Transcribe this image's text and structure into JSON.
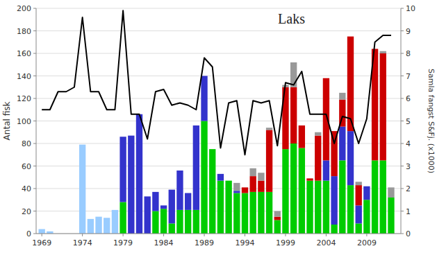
{
  "chart_data": {
    "type": "bar",
    "stacked": true,
    "grid": true,
    "title": "Laks",
    "ylabel": "Antal fisk",
    "y2label": "Samla fangst S&Fj. (x1000)",
    "x": [
      1969,
      1970,
      1971,
      1972,
      1973,
      1974,
      1975,
      1976,
      1977,
      1978,
      1979,
      1980,
      1981,
      1982,
      1983,
      1984,
      1985,
      1986,
      1987,
      1988,
      1989,
      1990,
      1991,
      1992,
      1993,
      1994,
      1995,
      1996,
      1997,
      1998,
      1999,
      2000,
      2001,
      2002,
      2003,
      2004,
      2005,
      2006,
      2007,
      2008,
      2009,
      2010,
      2011,
      2012
    ],
    "xlim": [
      1968.3,
      2013.2
    ],
    "xticks": [
      1969,
      1974,
      1979,
      1984,
      1989,
      1994,
      1999,
      2004,
      2009
    ],
    "ylim": [
      0,
      200
    ],
    "yticks": [
      0,
      20,
      40,
      60,
      80,
      100,
      120,
      140,
      160,
      180,
      200
    ],
    "y2lim": [
      0,
      10
    ],
    "y2ticks": [
      0,
      1,
      2,
      3,
      4,
      5,
      6,
      7,
      8,
      9,
      10
    ],
    "series": [
      {
        "color": "#99CCFF",
        "values": [
          4,
          2,
          0,
          0,
          0,
          79,
          13,
          15,
          14,
          21,
          0,
          0,
          0,
          0,
          0,
          0,
          0,
          0,
          0,
          0,
          0,
          0,
          0,
          0,
          0,
          0,
          0,
          0,
          0,
          0,
          0,
          0,
          0,
          0,
          0,
          0,
          0,
          0,
          0,
          0,
          0,
          0,
          0,
          0
        ]
      },
      {
        "color": "#00CC00",
        "values": [
          0,
          0,
          0,
          0,
          0,
          0,
          0,
          0,
          0,
          0,
          28,
          0,
          0,
          0,
          20,
          22,
          9,
          21,
          21,
          21,
          100,
          75,
          47,
          47,
          36,
          36,
          37,
          37,
          37,
          12,
          75,
          80,
          76,
          47,
          47,
          47,
          8,
          65,
          43,
          9,
          30,
          65,
          65,
          32
        ]
      },
      {
        "color": "#3333CC",
        "values": [
          0,
          0,
          0,
          0,
          0,
          0,
          0,
          0,
          0,
          0,
          58,
          87,
          106,
          33,
          17,
          3,
          30,
          35,
          15,
          75,
          40,
          0,
          6,
          0,
          2,
          0,
          0,
          0,
          0,
          0,
          0,
          0,
          0,
          0,
          0,
          18,
          43,
          30,
          48,
          16,
          12,
          0,
          0,
          0
        ]
      },
      {
        "color": "#CC0000",
        "values": [
          0,
          0,
          0,
          0,
          0,
          0,
          0,
          0,
          0,
          0,
          0,
          0,
          0,
          0,
          0,
          0,
          0,
          0,
          0,
          0,
          0,
          0,
          0,
          0,
          0,
          5,
          14,
          10,
          55,
          3,
          55,
          50,
          20,
          2,
          40,
          73,
          40,
          24,
          84,
          18,
          0,
          99,
          95,
          0
        ]
      },
      {
        "color": "#999999",
        "values": [
          0,
          0,
          0,
          0,
          0,
          0,
          0,
          0,
          0,
          0,
          0,
          0,
          0,
          0,
          0,
          0,
          0,
          0,
          0,
          0,
          0,
          0,
          0,
          0,
          7,
          0,
          7,
          7,
          2,
          5,
          2,
          22,
          0,
          0,
          3,
          0,
          0,
          6,
          0,
          3,
          0,
          0,
          2,
          9
        ]
      },
      {
        "type": "line",
        "axis": "y2",
        "color": "#000000",
        "values": [
          5.5,
          5.5,
          6.3,
          6.3,
          6.5,
          9.6,
          6.3,
          6.3,
          5.5,
          5.5,
          9.9,
          5.3,
          5.3,
          4.2,
          6.3,
          6.4,
          5.7,
          5.8,
          5.7,
          5.5,
          7.8,
          7.4,
          3.8,
          5.8,
          5.9,
          3.5,
          5.9,
          5.8,
          5.9,
          3.9,
          6.7,
          6.6,
          7.2,
          5.3,
          5.3,
          5.3,
          4.0,
          5.2,
          5.1,
          4.0,
          5.1,
          8.5,
          8.8,
          8.8
        ]
      }
    ]
  }
}
